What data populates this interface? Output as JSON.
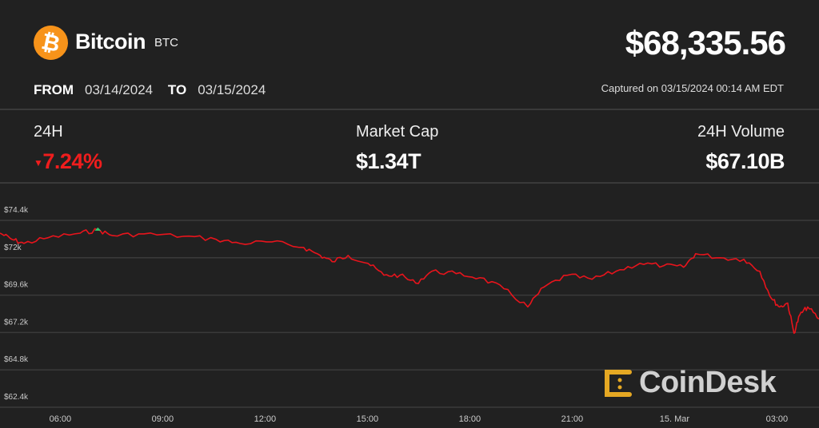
{
  "asset": {
    "name": "Bitcoin",
    "symbol": "BTC",
    "logo_glyph": "₿",
    "logo_color": "#f7931a",
    "price": "$68,335.56"
  },
  "range": {
    "from_label": "FROM",
    "from": "03/14/2024",
    "to_label": "TO",
    "to": "03/15/2024"
  },
  "captured": "Captured on 03/15/2024 00:14 AM EDT",
  "stats": {
    "change": {
      "label": "24H",
      "value": "7.24%",
      "direction": "down",
      "color": "#f01d1d"
    },
    "market_cap": {
      "label": "Market Cap",
      "value": "$1.34T"
    },
    "volume": {
      "label": "24H Volume",
      "value": "$67.10B"
    }
  },
  "brand": {
    "name": "CoinDesk",
    "color": "#e5a823"
  },
  "chart_data": {
    "type": "line",
    "title": "",
    "xlabel": "",
    "ylabel": "",
    "x_range": [
      "2024-03-14T04:14",
      "2024-03-15T04:14"
    ],
    "ylim": [
      62400,
      74400
    ],
    "y_ticks": [
      74400,
      72000,
      69600,
      67200,
      64800,
      62400
    ],
    "y_tick_labels": [
      "$74.4k",
      "$72k",
      "$69.6k",
      "$67.2k",
      "$64.8k",
      "$62.4k"
    ],
    "x_ticks": [
      "2024-03-14T06:00",
      "2024-03-14T09:00",
      "2024-03-14T12:00",
      "2024-03-14T15:00",
      "2024-03-14T18:00",
      "2024-03-14T21:00",
      "2024-03-15T00:00",
      "2024-03-15T03:00"
    ],
    "x_tick_labels": [
      "06:00",
      "09:00",
      "12:00",
      "15:00",
      "18:00",
      "21:00",
      "15. Mar",
      "03:00"
    ],
    "grid": true,
    "line_color": "#e8141c",
    "high_marker_color": "#2ecc71",
    "series": [
      {
        "values": [
          [
            "2024-03-14T04:14",
            73580
          ],
          [
            "2024-03-14T04:35",
            73180
          ],
          [
            "2024-03-14T04:56",
            72920
          ],
          [
            "2024-03-14T05:38",
            73280
          ],
          [
            "2024-03-14T06:35",
            73580
          ],
          [
            "2024-03-14T07:06",
            73790
          ],
          [
            "2024-03-14T07:31",
            73430
          ],
          [
            "2024-03-14T08:27",
            73530
          ],
          [
            "2024-03-14T09:37",
            73380
          ],
          [
            "2024-03-14T10:34",
            73180
          ],
          [
            "2024-03-14T11:16",
            72920
          ],
          [
            "2024-03-14T12:12",
            73020
          ],
          [
            "2024-03-14T13:08",
            72660
          ],
          [
            "2024-03-14T13:37",
            72150
          ],
          [
            "2024-03-14T13:58",
            71750
          ],
          [
            "2024-03-14T14:26",
            72150
          ],
          [
            "2024-03-14T15:01",
            71640
          ],
          [
            "2024-03-14T15:29",
            70880
          ],
          [
            "2024-03-14T15:57",
            70880
          ],
          [
            "2024-03-14T16:25",
            70370
          ],
          [
            "2024-03-14T16:53",
            71130
          ],
          [
            "2024-03-14T17:36",
            70980
          ],
          [
            "2024-03-14T18:18",
            70720
          ],
          [
            "2024-03-14T19:00",
            70010
          ],
          [
            "2024-03-14T19:42",
            68840
          ],
          [
            "2024-03-14T20:10",
            70110
          ],
          [
            "2024-03-14T20:52",
            70880
          ],
          [
            "2024-03-14T21:35",
            70620
          ],
          [
            "2024-03-14T22:17",
            71130
          ],
          [
            "2024-03-14T22:59",
            71640
          ],
          [
            "2024-03-14T23:41",
            71490
          ],
          [
            "2024-03-15T00:16",
            71390
          ],
          [
            "2024-03-15T00:37",
            72260
          ],
          [
            "2024-03-15T01:20",
            72000
          ],
          [
            "2024-03-15T02:02",
            71900
          ],
          [
            "2024-03-15T02:30",
            71130
          ],
          [
            "2024-03-15T02:51",
            69350
          ],
          [
            "2024-03-15T03:05",
            68840
          ],
          [
            "2024-03-15T03:19",
            69090
          ],
          [
            "2024-03-15T03:30",
            67150
          ],
          [
            "2024-03-15T03:40",
            68320
          ],
          [
            "2024-03-15T03:54",
            68840
          ],
          [
            "2024-03-15T04:14",
            68070
          ]
        ]
      }
    ]
  }
}
